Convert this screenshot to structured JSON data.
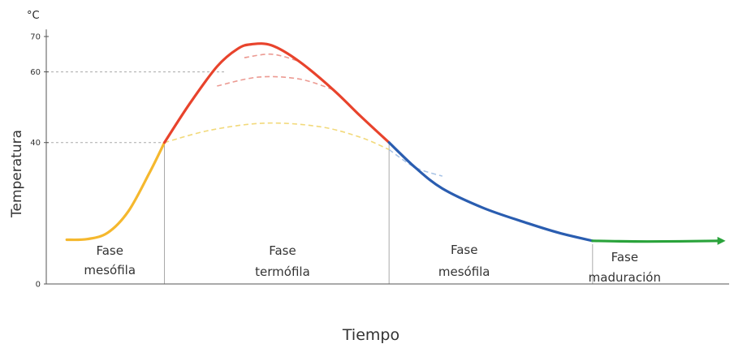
{
  "chart_data": {
    "type": "line",
    "unit_label": "°C",
    "xlabel": "Tiempo",
    "ylabel": "Temperatura",
    "y_ticks": [
      {
        "value": 0,
        "label": "0"
      },
      {
        "value": 40,
        "label": "40"
      },
      {
        "value": 60,
        "label": "60"
      },
      {
        "value": 70,
        "label": "70"
      }
    ],
    "ylim": [
      0,
      72
    ],
    "xlim": [
      0,
      100
    ],
    "phase_boundaries": [
      17.3,
      50.2,
      80
    ],
    "phases": [
      {
        "line1": "Fase",
        "line2": "mesófila",
        "center": 9.3
      },
      {
        "line1": "Fase",
        "line2": "termófila",
        "center": 34.6
      },
      {
        "line1": "Fase",
        "line2": "mesófila",
        "center": 61.2
      },
      {
        "line1": "Fase",
        "line2": "maduración",
        "center": 84.7
      }
    ],
    "series": [
      {
        "color": "#f5b82e",
        "style": "solid",
        "points": [
          [
            3,
            12.5
          ],
          [
            6,
            12.7
          ],
          [
            9,
            14.5
          ],
          [
            12,
            20.5
          ],
          [
            15,
            31
          ],
          [
            17.3,
            40
          ]
        ]
      },
      {
        "color": "#e8432c",
        "style": "solid",
        "points": [
          [
            17.3,
            40
          ],
          [
            21,
            51
          ],
          [
            25,
            61.5
          ],
          [
            28,
            66.5
          ],
          [
            30,
            67.8
          ],
          [
            33,
            67.5
          ],
          [
            37,
            63
          ],
          [
            42,
            55
          ],
          [
            46,
            47.5
          ],
          [
            50.2,
            40
          ]
        ]
      },
      {
        "color": "#2a5db0",
        "style": "solid",
        "points": [
          [
            50.2,
            40
          ],
          [
            54,
            33
          ],
          [
            58,
            27
          ],
          [
            64,
            21.5
          ],
          [
            70,
            17.5
          ],
          [
            75,
            14.5
          ],
          [
            80,
            12.2
          ]
        ]
      },
      {
        "color": "#2aa33b",
        "style": "solid",
        "arrow": true,
        "points": [
          [
            80,
            12.2
          ],
          [
            88,
            12
          ],
          [
            99,
            12.2
          ]
        ]
      },
      {
        "color": "#f2d97a",
        "style": "dashed",
        "points": [
          [
            17.3,
            40
          ],
          [
            24,
            43.5
          ],
          [
            32,
            45.5
          ],
          [
            40,
            44.5
          ],
          [
            46,
            41.5
          ],
          [
            50.2,
            38
          ]
        ]
      },
      {
        "color": "#ec9a92",
        "style": "dashed",
        "points": [
          [
            25,
            56
          ],
          [
            31,
            58.5
          ],
          [
            37,
            58
          ],
          [
            42,
            55
          ]
        ]
      },
      {
        "color": "#ec9a92",
        "style": "dashed",
        "points": [
          [
            29,
            64
          ],
          [
            33,
            65
          ],
          [
            37,
            63
          ]
        ]
      },
      {
        "color": "#a8c3e6",
        "style": "dashed",
        "points": [
          [
            50.2,
            38
          ],
          [
            54,
            33
          ],
          [
            58,
            30.5
          ]
        ]
      }
    ]
  }
}
